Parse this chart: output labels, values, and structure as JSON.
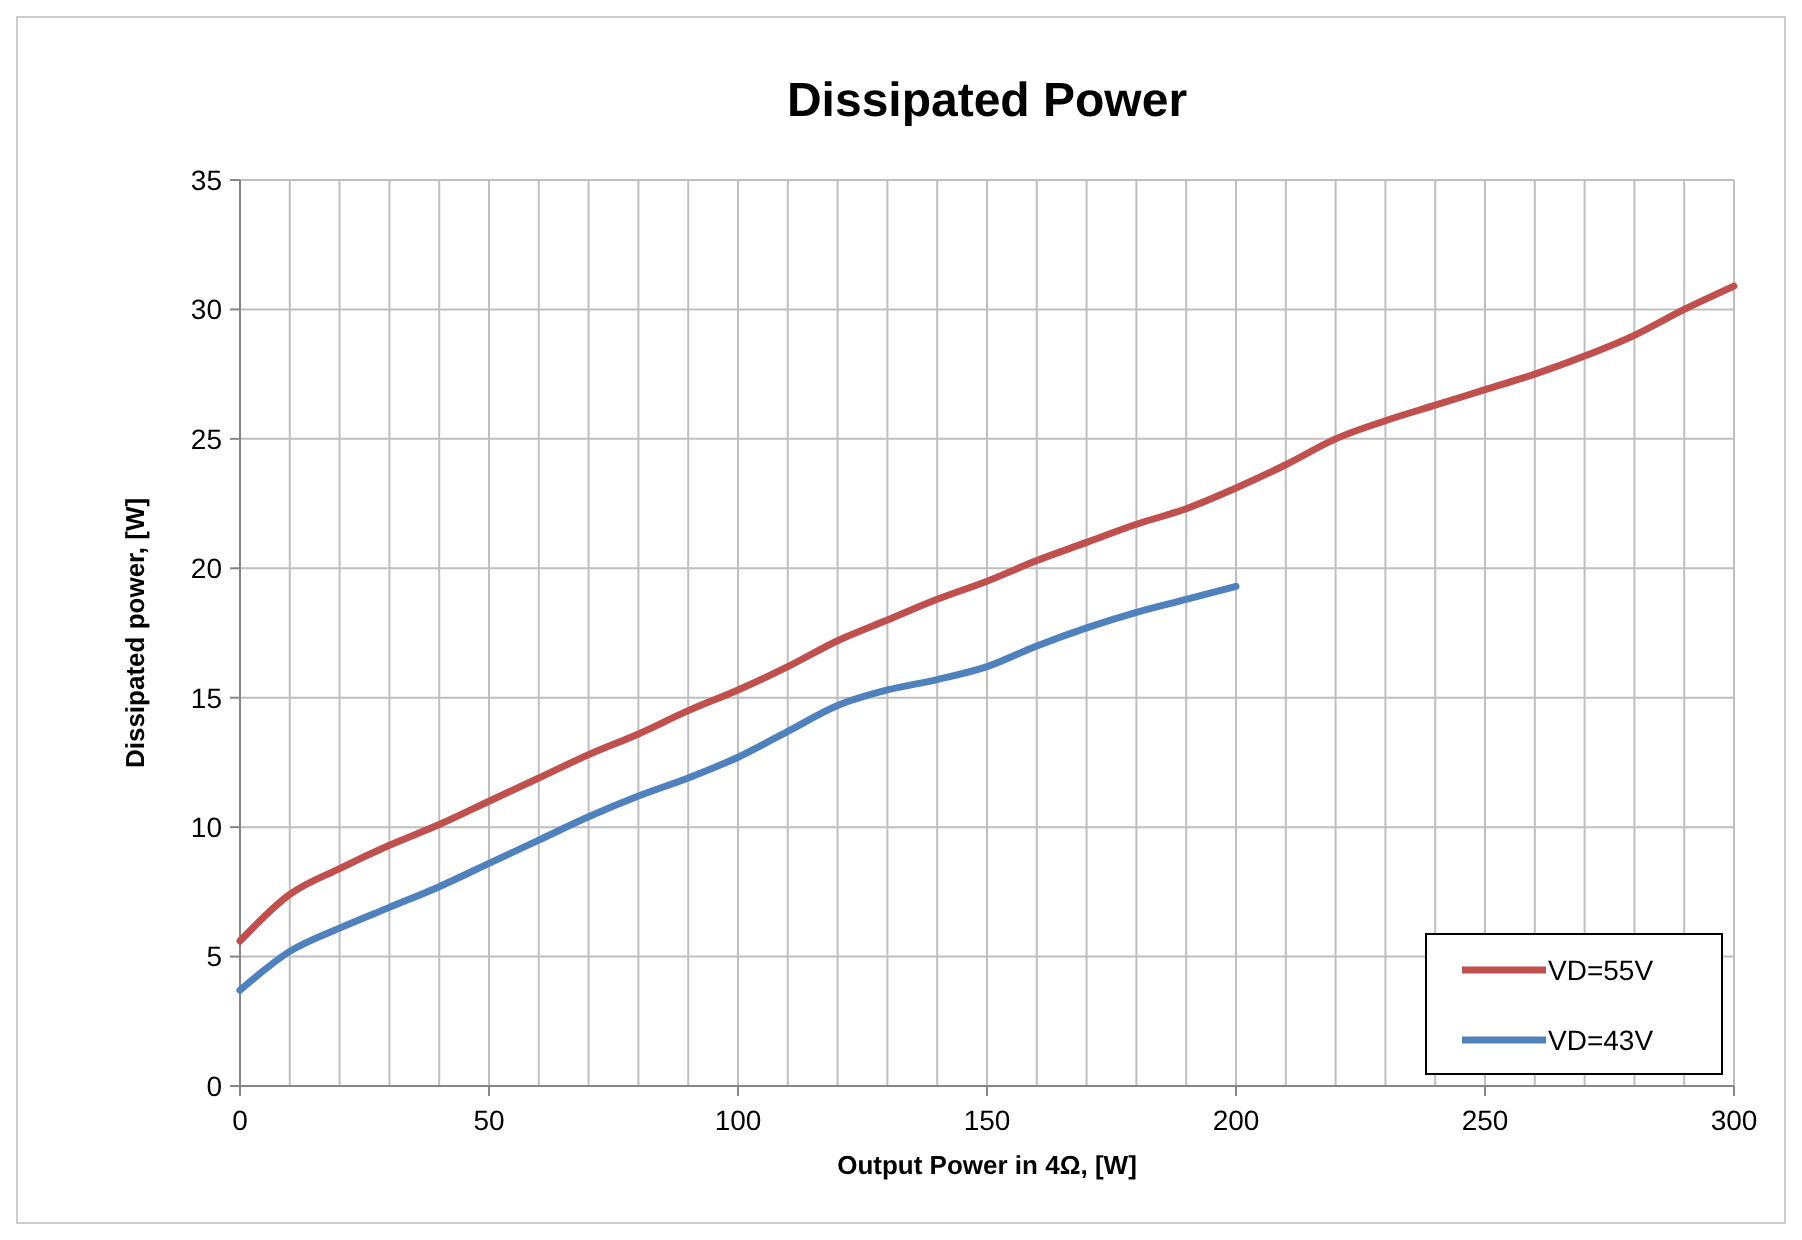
{
  "chart_data": {
    "type": "line",
    "title": "Dissipated Power",
    "xlabel": "Output Power in 4Ω, [W]",
    "ylabel": "Dissipated power, [W]",
    "xlim": [
      0,
      300
    ],
    "xticks": [
      0,
      50,
      100,
      150,
      200,
      250,
      300
    ],
    "ylim": [
      0,
      35
    ],
    "yticks": [
      0,
      5,
      10,
      15,
      20,
      25,
      30,
      35
    ],
    "grid": true,
    "legend": "bottom right",
    "marker": "none",
    "line_style": "solid",
    "series": [
      {
        "name": "VD=55V",
        "color": "#c0504d",
        "x": [
          0,
          10,
          20,
          30,
          40,
          50,
          60,
          70,
          80,
          90,
          100,
          110,
          120,
          130,
          140,
          150,
          160,
          170,
          180,
          190,
          200,
          210,
          220,
          230,
          240,
          250,
          260,
          270,
          280,
          290,
          300
        ],
        "values": [
          5.6,
          7.4,
          8.4,
          9.3,
          10.1,
          11,
          11.9,
          12.8,
          13.6,
          14.5,
          15.3,
          16.2,
          17.2,
          18,
          18.8,
          19.5,
          20.3,
          21,
          21.7,
          22.3,
          23.1,
          24,
          25,
          25.7,
          26.3,
          26.9,
          27.5,
          28.2,
          29,
          30,
          30.9
        ]
      },
      {
        "name": "VD=43V",
        "color": "#4f81bd",
        "x": [
          0,
          10,
          20,
          30,
          40,
          50,
          60,
          70,
          80,
          90,
          100,
          110,
          120,
          130,
          140,
          150,
          160,
          170,
          180,
          190,
          200
        ],
        "values": [
          3.7,
          5.2,
          6.1,
          6.9,
          7.7,
          8.6,
          9.5,
          10.4,
          11.2,
          11.9,
          12.7,
          13.7,
          14.7,
          15.3,
          15.7,
          16.2,
          17,
          17.7,
          18.3,
          18.8,
          19.3
        ]
      }
    ]
  }
}
